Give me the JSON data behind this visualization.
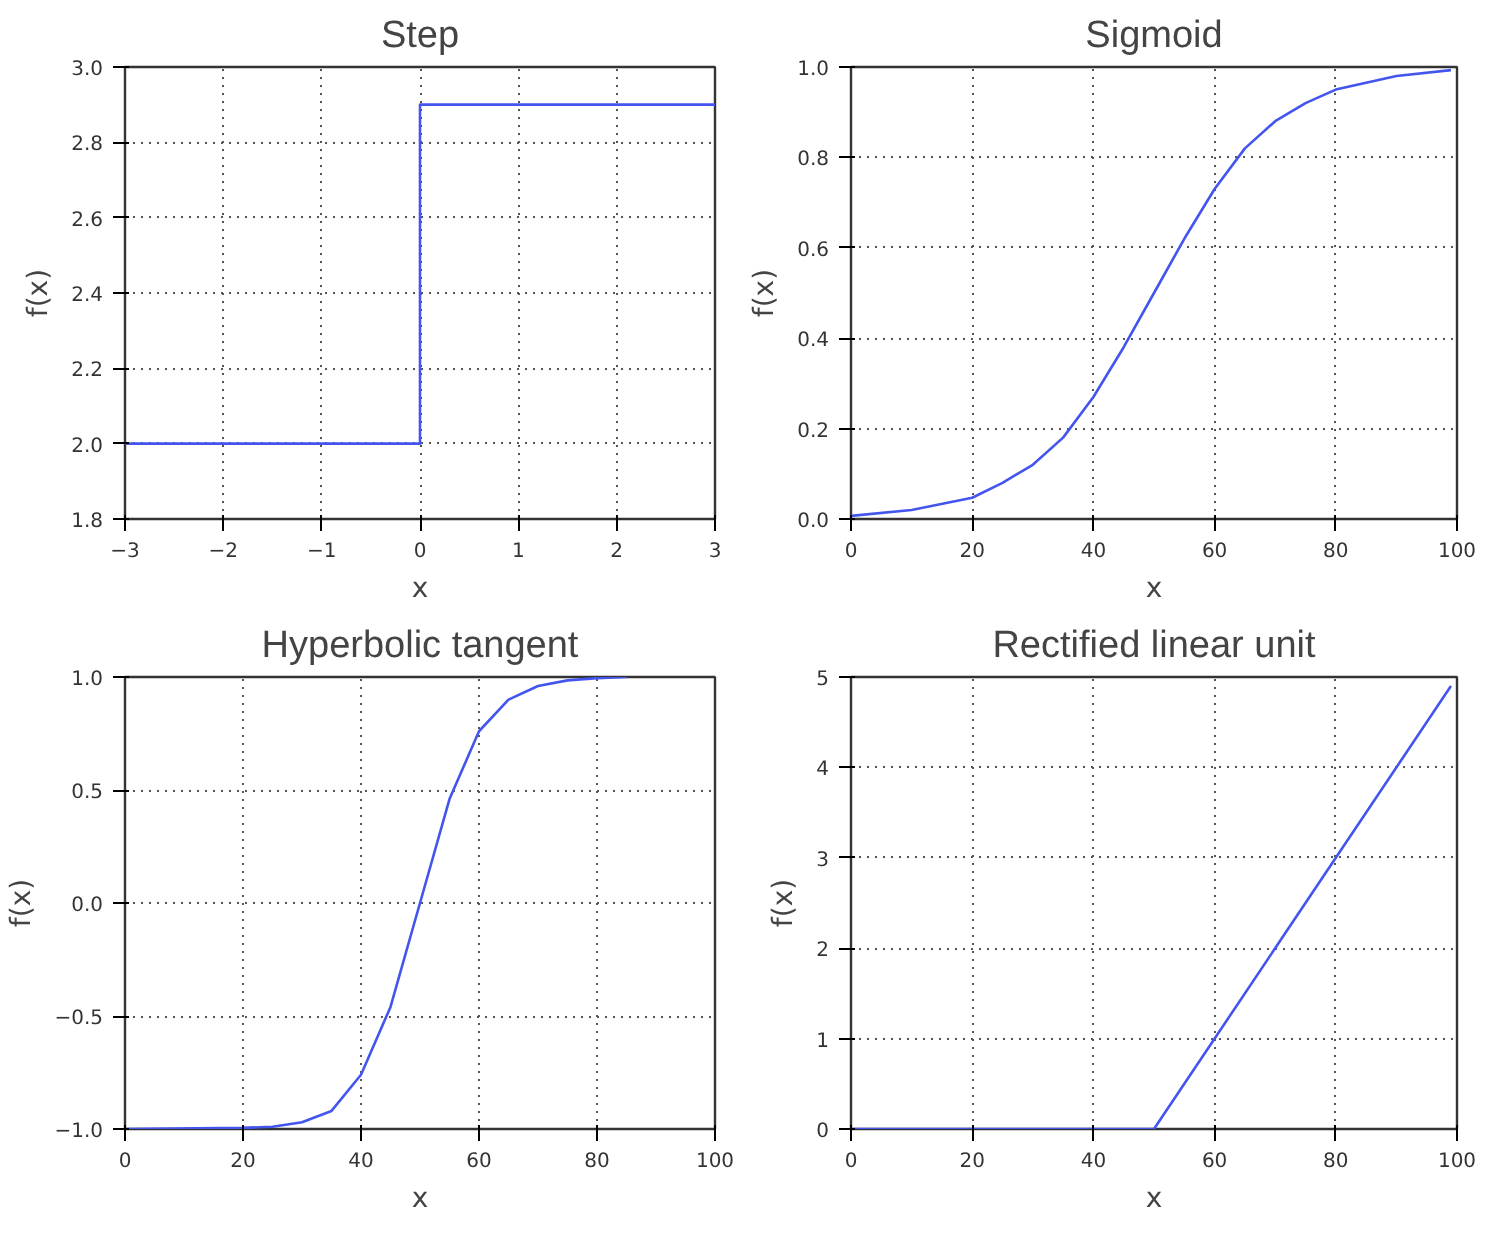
{
  "chart_data": [
    {
      "type": "line",
      "title": "Step",
      "xlabel": "x",
      "ylabel": "f(x)",
      "xlim": [
        -3,
        3
      ],
      "ylim": [
        1.8,
        3.0
      ],
      "xticks": [
        {
          "value": -3,
          "label": "−3"
        },
        {
          "value": -2,
          "label": "−2"
        },
        {
          "value": -1,
          "label": "−1"
        },
        0,
        1,
        2,
        3
      ],
      "yticks": [
        {
          "value": 1.8,
          "label": "1.8"
        },
        {
          "value": 2.0,
          "label": "2.0"
        },
        {
          "value": 2.2,
          "label": "2.2"
        },
        {
          "value": 2.4,
          "label": "2.4"
        },
        {
          "value": 2.6,
          "label": "2.6"
        },
        {
          "value": 2.8,
          "label": "2.8"
        },
        {
          "value": 3.0,
          "label": "3.0"
        }
      ],
      "grid": true,
      "line_style": "solid",
      "series": [
        {
          "color": "#4455ee",
          "x": [
            -3,
            0,
            0,
            3
          ],
          "values": [
            2.0,
            2.0,
            2.9,
            2.9
          ]
        }
      ]
    },
    {
      "type": "line",
      "title": "Sigmoid",
      "xlabel": "x",
      "ylabel": "f(x)",
      "xlim": [
        0,
        100
      ],
      "ylim": [
        0,
        1
      ],
      "xticks": [
        0,
        20,
        40,
        60,
        80,
        100
      ],
      "yticks": [
        {
          "value": 0,
          "label": "0.0"
        },
        0.2,
        0.4,
        0.6,
        0.8,
        {
          "value": 1,
          "label": "1.0"
        }
      ],
      "grid": true,
      "line_style": "solid",
      "series": [
        {
          "color": "#4455ee",
          "x": [
            0,
            10,
            20,
            25,
            30,
            35,
            40,
            45,
            50,
            55,
            60,
            65,
            70,
            75,
            80,
            90,
            99
          ],
          "values": [
            0.007,
            0.02,
            0.047,
            0.08,
            0.12,
            0.18,
            0.27,
            0.38,
            0.5,
            0.62,
            0.73,
            0.82,
            0.88,
            0.92,
            0.95,
            0.98,
            0.993
          ]
        }
      ]
    },
    {
      "type": "line",
      "title": "Hyperbolic tangent",
      "xlabel": "x",
      "ylabel": "f(x)",
      "xlim": [
        0,
        100
      ],
      "ylim": [
        -1,
        1
      ],
      "xticks": [
        0,
        20,
        40,
        60,
        80,
        100
      ],
      "yticks": [
        {
          "value": -1,
          "label": "−1.0"
        },
        {
          "value": -0.5,
          "label": "−0.5"
        },
        {
          "value": 0,
          "label": "0.0"
        },
        0.5,
        {
          "value": 1,
          "label": "1.0"
        }
      ],
      "grid": true,
      "line_style": "solid",
      "series": [
        {
          "color": "#4455ee",
          "x": [
            0,
            20,
            25,
            30,
            35,
            40,
            45,
            50,
            55,
            60,
            65,
            70,
            75,
            80,
            85
          ],
          "values": [
            -1.0,
            -0.995,
            -0.99,
            -0.97,
            -0.92,
            -0.76,
            -0.46,
            0.0,
            0.46,
            0.76,
            0.9,
            0.96,
            0.985,
            0.995,
            1.0
          ]
        }
      ]
    },
    {
      "type": "line",
      "title": "Rectified linear unit",
      "xlabel": "x",
      "ylabel": "f(x)",
      "xlim": [
        0,
        100
      ],
      "ylim": [
        0,
        5
      ],
      "xticks": [
        0,
        20,
        40,
        60,
        80,
        100
      ],
      "yticks": [
        0,
        1,
        2,
        3,
        4,
        5
      ],
      "grid": true,
      "line_style": "solid",
      "series": [
        {
          "color": "#4455ee",
          "x": [
            0,
            50,
            99
          ],
          "values": [
            0,
            0,
            4.9
          ]
        }
      ]
    }
  ]
}
